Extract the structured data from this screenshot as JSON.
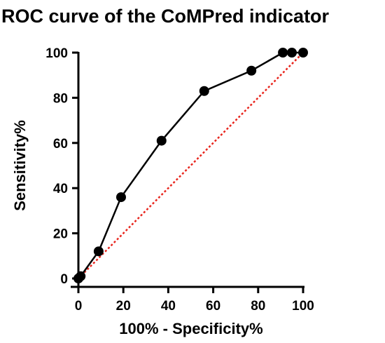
{
  "chart_data": {
    "type": "line",
    "title": "ROC curve of the CoMPred indicator",
    "xlabel": "100% - Specificity%",
    "ylabel": "Sensitivity%",
    "xlim": [
      0,
      100
    ],
    "ylim": [
      0,
      100
    ],
    "x_ticks": [
      "0",
      "20",
      "40",
      "60",
      "80",
      "100"
    ],
    "y_ticks": [
      "0",
      "20",
      "40",
      "60",
      "80",
      "100"
    ],
    "grid": false,
    "legend": "none",
    "series": [
      {
        "color": "#000000",
        "marker": "circle",
        "x": [
          0,
          1,
          9,
          19,
          37,
          56,
          77,
          91,
          95,
          100
        ],
        "y": [
          0,
          1,
          12,
          36,
          61,
          83,
          92,
          100,
          100,
          100
        ]
      }
    ],
    "reference_line": {
      "color": "#e8241c",
      "style": "dotted",
      "x": [
        0,
        100
      ],
      "y": [
        0,
        100
      ]
    }
  }
}
